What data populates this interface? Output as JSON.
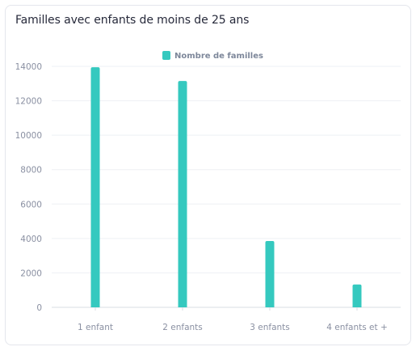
{
  "card": {
    "title": "Familles avec enfants de moins de 25 ans"
  },
  "chart_data": {
    "type": "bar",
    "title": "Familles avec enfants de moins de 25 ans",
    "categories": [
      "1 enfant",
      "2 enfants",
      "3 enfants",
      "4 enfants et +"
    ],
    "series": [
      {
        "name": "Nombre de familles",
        "color": "#35c9bf",
        "values": [
          13950,
          13150,
          3850,
          1330
        ]
      }
    ],
    "ylim": [
      0,
      14000
    ],
    "yticks": [
      0,
      2000,
      4000,
      6000,
      8000,
      10000,
      12000,
      14000
    ],
    "grid": true,
    "legend": "top-center",
    "xlabel": "",
    "ylabel": ""
  }
}
